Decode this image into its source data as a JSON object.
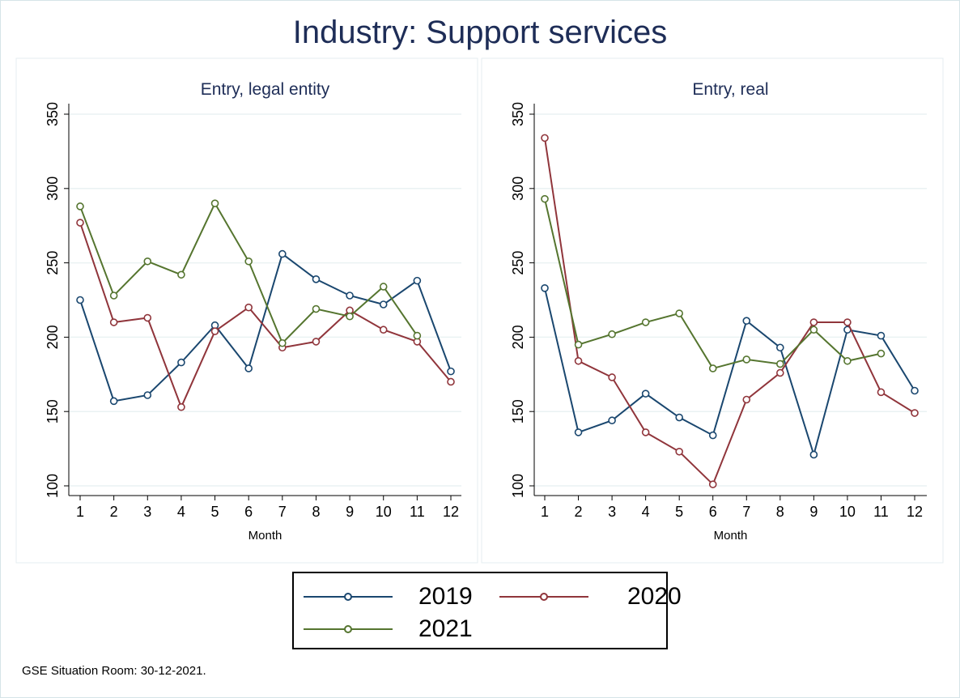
{
  "title": "Industry: Support services",
  "footnote": "GSE Situation Room: 30-12-2021.",
  "colors": {
    "2019": "#1a476f",
    "2020": "#90353b",
    "2021": "#55752f"
  },
  "chart_data": [
    {
      "type": "line",
      "title": "Entry, legal entity",
      "xlabel": "Month",
      "ylabel": "",
      "x": [
        1,
        2,
        3,
        4,
        5,
        6,
        7,
        8,
        9,
        10,
        11,
        12
      ],
      "ylim": [
        100,
        350
      ],
      "yticks": [
        100,
        150,
        200,
        250,
        300,
        350
      ],
      "grid": true,
      "series": [
        {
          "name": "2019",
          "values": [
            225,
            157,
            161,
            183,
            208,
            179,
            256,
            239,
            228,
            222,
            238,
            177
          ]
        },
        {
          "name": "2020",
          "values": [
            277,
            210,
            213,
            153,
            204,
            220,
            193,
            197,
            218,
            205,
            197,
            170
          ]
        },
        {
          "name": "2021",
          "values": [
            288,
            228,
            251,
            242,
            290,
            251,
            196,
            219,
            214,
            234,
            201,
            null
          ]
        }
      ]
    },
    {
      "type": "line",
      "title": "Entry, real",
      "xlabel": "Month",
      "ylabel": "",
      "x": [
        1,
        2,
        3,
        4,
        5,
        6,
        7,
        8,
        9,
        10,
        11,
        12
      ],
      "ylim": [
        100,
        350
      ],
      "yticks": [
        100,
        150,
        200,
        250,
        300,
        350
      ],
      "grid": true,
      "series": [
        {
          "name": "2019",
          "values": [
            233,
            136,
            144,
            162,
            146,
            134,
            211,
            193,
            121,
            205,
            201,
            164
          ]
        },
        {
          "name": "2020",
          "values": [
            334,
            184,
            173,
            136,
            123,
            101,
            158,
            176,
            210,
            210,
            163,
            149
          ]
        },
        {
          "name": "2021",
          "values": [
            293,
            195,
            202,
            210,
            216,
            179,
            185,
            182,
            205,
            184,
            189,
            null
          ]
        }
      ]
    }
  ],
  "legend": {
    "position": "bottom",
    "items": [
      "2019",
      "2020",
      "2021"
    ]
  }
}
